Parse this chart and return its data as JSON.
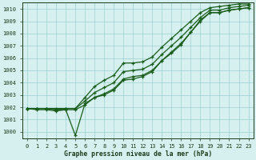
{
  "bg_color": "#d6f0f0",
  "line_color": "#1a5c1a",
  "grid_color": "#9ecece",
  "xlabel": "Graphe pression niveau de la mer (hPa)",
  "ylim": [
    999.5,
    1010.5
  ],
  "xlim": [
    -0.5,
    23.5
  ],
  "yticks": [
    1000,
    1001,
    1002,
    1003,
    1004,
    1005,
    1006,
    1007,
    1008,
    1009,
    1010
  ],
  "xticks": [
    0,
    1,
    2,
    3,
    4,
    5,
    6,
    7,
    8,
    9,
    10,
    11,
    12,
    13,
    14,
    15,
    16,
    17,
    18,
    19,
    20,
    21,
    22,
    23
  ],
  "line1_x": [
    0,
    1,
    2,
    3,
    4,
    5,
    6,
    7,
    8,
    9,
    10,
    11,
    12,
    13,
    14,
    15,
    16,
    17,
    18,
    19,
    20,
    21,
    22,
    23
  ],
  "line1_y": [
    1001.9,
    1001.8,
    1001.8,
    1001.7,
    1001.8,
    999.7,
    1002.3,
    1002.8,
    1003.0,
    1003.4,
    1004.2,
    1004.3,
    1004.5,
    1004.9,
    1005.8,
    1006.4,
    1007.1,
    1008.1,
    1009.0,
    1009.7,
    1009.7,
    1009.9,
    1010.0,
    1010.1
  ],
  "line2_x": [
    0,
    1,
    2,
    3,
    4,
    5,
    6,
    7,
    8,
    9,
    10,
    11,
    12,
    13,
    14,
    15,
    16,
    17,
    18,
    19,
    20,
    21,
    22,
    23
  ],
  "line2_y": [
    1001.9,
    1001.9,
    1001.9,
    1001.8,
    1001.8,
    1001.8,
    1002.2,
    1002.8,
    1003.1,
    1003.5,
    1004.3,
    1004.5,
    1004.6,
    1005.0,
    1005.8,
    1006.5,
    1007.2,
    1008.1,
    1009.1,
    1009.7,
    1009.7,
    1009.9,
    1010.0,
    1010.1
  ],
  "line3_x": [
    0,
    1,
    2,
    3,
    4,
    5,
    6,
    7,
    8,
    9,
    10,
    11,
    12,
    13,
    14,
    15,
    16,
    17,
    18,
    19,
    20,
    21,
    22,
    23
  ],
  "line3_y": [
    1001.9,
    1001.9,
    1001.9,
    1001.8,
    1001.9,
    1001.9,
    1002.5,
    1003.2,
    1003.6,
    1004.0,
    1004.9,
    1005.0,
    1005.1,
    1005.5,
    1006.3,
    1007.0,
    1007.7,
    1008.5,
    1009.3,
    1009.9,
    1009.9,
    1010.1,
    1010.2,
    1010.3
  ],
  "line4_x": [
    0,
    1,
    2,
    3,
    4,
    5,
    6,
    7,
    8,
    9,
    10,
    11,
    12,
    13,
    14,
    15,
    16,
    17,
    18,
    19,
    20,
    21,
    22,
    23
  ],
  "line4_y": [
    1001.9,
    1001.9,
    1001.9,
    1001.9,
    1001.9,
    1001.9,
    1002.8,
    1003.7,
    1004.2,
    1004.6,
    1005.6,
    1005.6,
    1005.7,
    1006.1,
    1006.9,
    1007.6,
    1008.3,
    1009.0,
    1009.7,
    1010.1,
    1010.2,
    1010.3,
    1010.4,
    1010.4
  ]
}
